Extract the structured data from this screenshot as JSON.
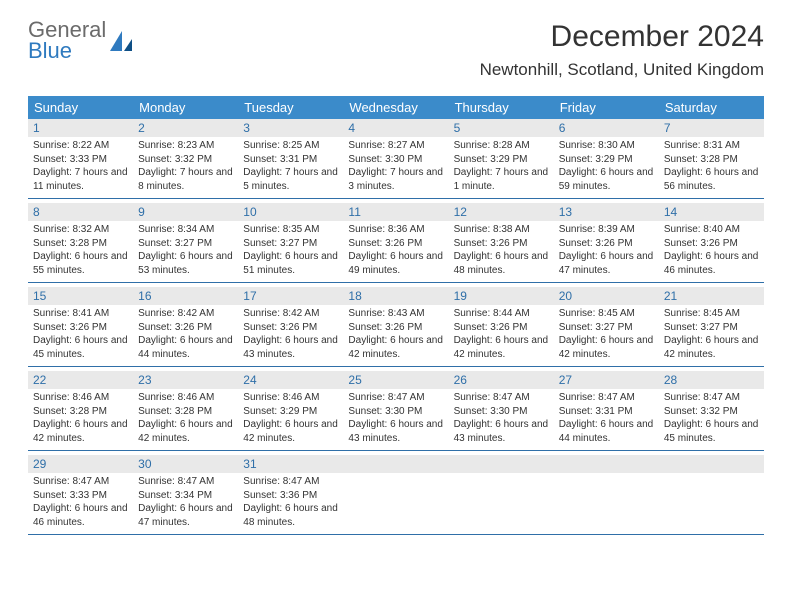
{
  "brand": {
    "line1": "General",
    "line2": "Blue"
  },
  "title": "December 2024",
  "location": "Newtonhill, Scotland, United Kingdom",
  "colors": {
    "header_bg": "#3b8bca",
    "header_text": "#ffffff",
    "daynum_bg": "#e9e9e9",
    "daynum_text": "#2f6fa8",
    "rule": "#2f6fa8",
    "body_text": "#333333",
    "logo_gray": "#6b6b6b",
    "logo_blue": "#2f7abf",
    "background": "#ffffff"
  },
  "day_names": [
    "Sunday",
    "Monday",
    "Tuesday",
    "Wednesday",
    "Thursday",
    "Friday",
    "Saturday"
  ],
  "weeks": [
    [
      {
        "n": "1",
        "sr": "Sunrise: 8:22 AM",
        "ss": "Sunset: 3:33 PM",
        "dl": "Daylight: 7 hours and 11 minutes."
      },
      {
        "n": "2",
        "sr": "Sunrise: 8:23 AM",
        "ss": "Sunset: 3:32 PM",
        "dl": "Daylight: 7 hours and 8 minutes."
      },
      {
        "n": "3",
        "sr": "Sunrise: 8:25 AM",
        "ss": "Sunset: 3:31 PM",
        "dl": "Daylight: 7 hours and 5 minutes."
      },
      {
        "n": "4",
        "sr": "Sunrise: 8:27 AM",
        "ss": "Sunset: 3:30 PM",
        "dl": "Daylight: 7 hours and 3 minutes."
      },
      {
        "n": "5",
        "sr": "Sunrise: 8:28 AM",
        "ss": "Sunset: 3:29 PM",
        "dl": "Daylight: 7 hours and 1 minute."
      },
      {
        "n": "6",
        "sr": "Sunrise: 8:30 AM",
        "ss": "Sunset: 3:29 PM",
        "dl": "Daylight: 6 hours and 59 minutes."
      },
      {
        "n": "7",
        "sr": "Sunrise: 8:31 AM",
        "ss": "Sunset: 3:28 PM",
        "dl": "Daylight: 6 hours and 56 minutes."
      }
    ],
    [
      {
        "n": "8",
        "sr": "Sunrise: 8:32 AM",
        "ss": "Sunset: 3:28 PM",
        "dl": "Daylight: 6 hours and 55 minutes."
      },
      {
        "n": "9",
        "sr": "Sunrise: 8:34 AM",
        "ss": "Sunset: 3:27 PM",
        "dl": "Daylight: 6 hours and 53 minutes."
      },
      {
        "n": "10",
        "sr": "Sunrise: 8:35 AM",
        "ss": "Sunset: 3:27 PM",
        "dl": "Daylight: 6 hours and 51 minutes."
      },
      {
        "n": "11",
        "sr": "Sunrise: 8:36 AM",
        "ss": "Sunset: 3:26 PM",
        "dl": "Daylight: 6 hours and 49 minutes."
      },
      {
        "n": "12",
        "sr": "Sunrise: 8:38 AM",
        "ss": "Sunset: 3:26 PM",
        "dl": "Daylight: 6 hours and 48 minutes."
      },
      {
        "n": "13",
        "sr": "Sunrise: 8:39 AM",
        "ss": "Sunset: 3:26 PM",
        "dl": "Daylight: 6 hours and 47 minutes."
      },
      {
        "n": "14",
        "sr": "Sunrise: 8:40 AM",
        "ss": "Sunset: 3:26 PM",
        "dl": "Daylight: 6 hours and 46 minutes."
      }
    ],
    [
      {
        "n": "15",
        "sr": "Sunrise: 8:41 AM",
        "ss": "Sunset: 3:26 PM",
        "dl": "Daylight: 6 hours and 45 minutes."
      },
      {
        "n": "16",
        "sr": "Sunrise: 8:42 AM",
        "ss": "Sunset: 3:26 PM",
        "dl": "Daylight: 6 hours and 44 minutes."
      },
      {
        "n": "17",
        "sr": "Sunrise: 8:42 AM",
        "ss": "Sunset: 3:26 PM",
        "dl": "Daylight: 6 hours and 43 minutes."
      },
      {
        "n": "18",
        "sr": "Sunrise: 8:43 AM",
        "ss": "Sunset: 3:26 PM",
        "dl": "Daylight: 6 hours and 42 minutes."
      },
      {
        "n": "19",
        "sr": "Sunrise: 8:44 AM",
        "ss": "Sunset: 3:26 PM",
        "dl": "Daylight: 6 hours and 42 minutes."
      },
      {
        "n": "20",
        "sr": "Sunrise: 8:45 AM",
        "ss": "Sunset: 3:27 PM",
        "dl": "Daylight: 6 hours and 42 minutes."
      },
      {
        "n": "21",
        "sr": "Sunrise: 8:45 AM",
        "ss": "Sunset: 3:27 PM",
        "dl": "Daylight: 6 hours and 42 minutes."
      }
    ],
    [
      {
        "n": "22",
        "sr": "Sunrise: 8:46 AM",
        "ss": "Sunset: 3:28 PM",
        "dl": "Daylight: 6 hours and 42 minutes."
      },
      {
        "n": "23",
        "sr": "Sunrise: 8:46 AM",
        "ss": "Sunset: 3:28 PM",
        "dl": "Daylight: 6 hours and 42 minutes."
      },
      {
        "n": "24",
        "sr": "Sunrise: 8:46 AM",
        "ss": "Sunset: 3:29 PM",
        "dl": "Daylight: 6 hours and 42 minutes."
      },
      {
        "n": "25",
        "sr": "Sunrise: 8:47 AM",
        "ss": "Sunset: 3:30 PM",
        "dl": "Daylight: 6 hours and 43 minutes."
      },
      {
        "n": "26",
        "sr": "Sunrise: 8:47 AM",
        "ss": "Sunset: 3:30 PM",
        "dl": "Daylight: 6 hours and 43 minutes."
      },
      {
        "n": "27",
        "sr": "Sunrise: 8:47 AM",
        "ss": "Sunset: 3:31 PM",
        "dl": "Daylight: 6 hours and 44 minutes."
      },
      {
        "n": "28",
        "sr": "Sunrise: 8:47 AM",
        "ss": "Sunset: 3:32 PM",
        "dl": "Daylight: 6 hours and 45 minutes."
      }
    ],
    [
      {
        "n": "29",
        "sr": "Sunrise: 8:47 AM",
        "ss": "Sunset: 3:33 PM",
        "dl": "Daylight: 6 hours and 46 minutes."
      },
      {
        "n": "30",
        "sr": "Sunrise: 8:47 AM",
        "ss": "Sunset: 3:34 PM",
        "dl": "Daylight: 6 hours and 47 minutes."
      },
      {
        "n": "31",
        "sr": "Sunrise: 8:47 AM",
        "ss": "Sunset: 3:36 PM",
        "dl": "Daylight: 6 hours and 48 minutes."
      },
      {
        "blank": true
      },
      {
        "blank": true
      },
      {
        "blank": true
      },
      {
        "blank": true
      }
    ]
  ]
}
